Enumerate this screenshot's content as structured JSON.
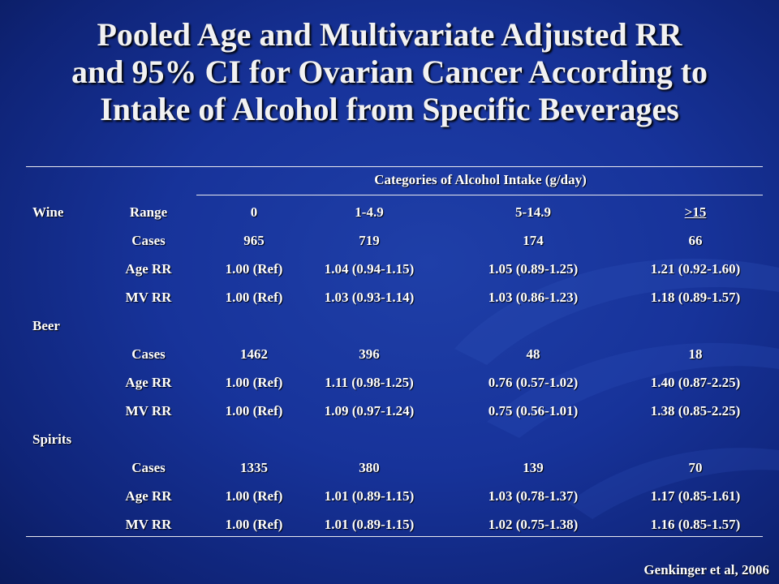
{
  "title_lines": [
    "Pooled Age and Multivariate Adjusted RR",
    "and 95% CI for Ovarian Cancer According to",
    "Intake of Alcohol from Specific Beverages"
  ],
  "table": {
    "group_header": "Categories of Alcohol Intake (g/day)",
    "range_label": "Range",
    "range_values": [
      "0",
      "1-4.9",
      "5-14.9",
      ">15"
    ],
    "sections": [
      {
        "name": "Wine",
        "rows": [
          {
            "label": "Cases",
            "values": [
              "965",
              "719",
              "174",
              "66"
            ]
          },
          {
            "label": "Age RR",
            "values": [
              "1.00 (Ref)",
              "1.04 (0.94-1.15)",
              "1.05 (0.89-1.25)",
              "1.21 (0.92-1.60)"
            ]
          },
          {
            "label": "MV RR",
            "values": [
              "1.00 (Ref)",
              "1.03 (0.93-1.14)",
              "1.03 (0.86-1.23)",
              "1.18 (0.89-1.57)"
            ]
          }
        ]
      },
      {
        "name": "Beer",
        "rows": [
          {
            "label": "Cases",
            "values": [
              "1462",
              "396",
              "48",
              "18"
            ]
          },
          {
            "label": "Age RR",
            "values": [
              "1.00 (Ref)",
              "1.11 (0.98-1.25)",
              "0.76 (0.57-1.02)",
              "1.40 (0.87-2.25)"
            ]
          },
          {
            "label": "MV RR",
            "values": [
              "1.00 (Ref)",
              "1.09 (0.97-1.24)",
              "0.75 (0.56-1.01)",
              "1.38 (0.85-2.25)"
            ]
          }
        ]
      },
      {
        "name": "Spirits",
        "rows": [
          {
            "label": "Cases",
            "values": [
              "1335",
              "380",
              "139",
              "70"
            ]
          },
          {
            "label": "Age RR",
            "values": [
              "1.00 (Ref)",
              "1.01 (0.89-1.15)",
              "1.03 (0.78-1.37)",
              "1.17 (0.85-1.61)"
            ]
          },
          {
            "label": "MV RR",
            "values": [
              "1.00 (Ref)",
              "1.01 (0.89-1.15)",
              "1.02 (0.75-1.38)",
              "1.16 (0.85-1.57)"
            ]
          }
        ]
      }
    ]
  },
  "credit": "Genkinger et al, 2006"
}
